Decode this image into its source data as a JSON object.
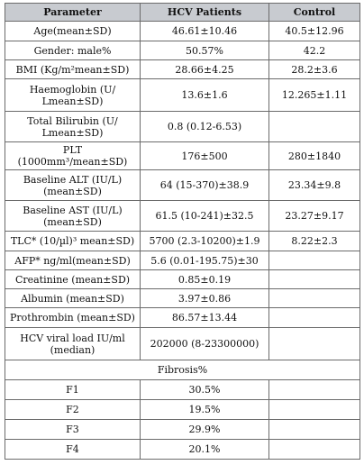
{
  "headers": [
    "Parameter",
    "HCV Patients",
    "Control"
  ],
  "rows": [
    {
      "parameter": "Age(mean±SD)",
      "hcv": "46.61±10.46",
      "control": "40.5±12.96",
      "h": 22
    },
    {
      "parameter": "Gender: male%",
      "hcv": "50.57%",
      "control": "42.2",
      "h": 21
    },
    {
      "parameter": "BMI (Kg/m²mean±SD)",
      "hcv": "28.66±4.25",
      "control": "28.2±3.6",
      "h": 21
    },
    {
      "parameter": "Haemoglobin (U/\nLmean±SD)",
      "hcv": "13.6±1.6",
      "control": "12.265±1.11",
      "h": 36
    },
    {
      "parameter": "Total Bilirubin (U/\nLmean±SD)",
      "hcv": "0.8 (0.12-6.53)",
      "control": "",
      "h": 34
    },
    {
      "parameter": "PLT (1000mm³/mean±SD)",
      "hcv": "176±500",
      "control": "280±1840",
      "h": 22
    },
    {
      "parameter": "Baseline ALT (IU/L)\n(mean±SD)",
      "hcv": "64 (15-370)±38.9",
      "control": "23.34±9.8",
      "h": 34
    },
    {
      "parameter": "Baseline AST (IU/L)\n(mean±SD)",
      "hcv": "61.5 (10-241)±32.5",
      "control": "23.27±9.17",
      "h": 34
    },
    {
      "parameter": "TLC* (10/µl)³ mean±SD)",
      "hcv": "5700 (2.3-10200)±1.9",
      "control": "8.22±2.3",
      "h": 22
    },
    {
      "parameter": "AFP* ng/ml(mean±SD)",
      "hcv": "5.6 (0.01-195.75)±30",
      "control": "",
      "h": 21
    },
    {
      "parameter": "Creatinine (mean±SD)",
      "hcv": "0.85±0.19",
      "control": "",
      "h": 21
    },
    {
      "parameter": "Albumin (mean±SD)",
      "hcv": "3.97±0.86",
      "control": "",
      "h": 21
    },
    {
      "parameter": "Prothrombin (mean±SD)",
      "hcv": "86.57±13.44",
      "control": "",
      "h": 22
    },
    {
      "parameter": "HCV viral load IU/ml\n(median)",
      "hcv": "202000 (8-23300000)",
      "control": "",
      "h": 36
    }
  ],
  "section_title": "Fibrosis%",
  "fibrosis": [
    {
      "stage": "F1",
      "value": "30.5%"
    },
    {
      "stage": "F2",
      "value": "19.5%"
    },
    {
      "stage": "F3",
      "value": "29.9%"
    },
    {
      "stage": "F4",
      "value": "20.1%"
    }
  ]
}
